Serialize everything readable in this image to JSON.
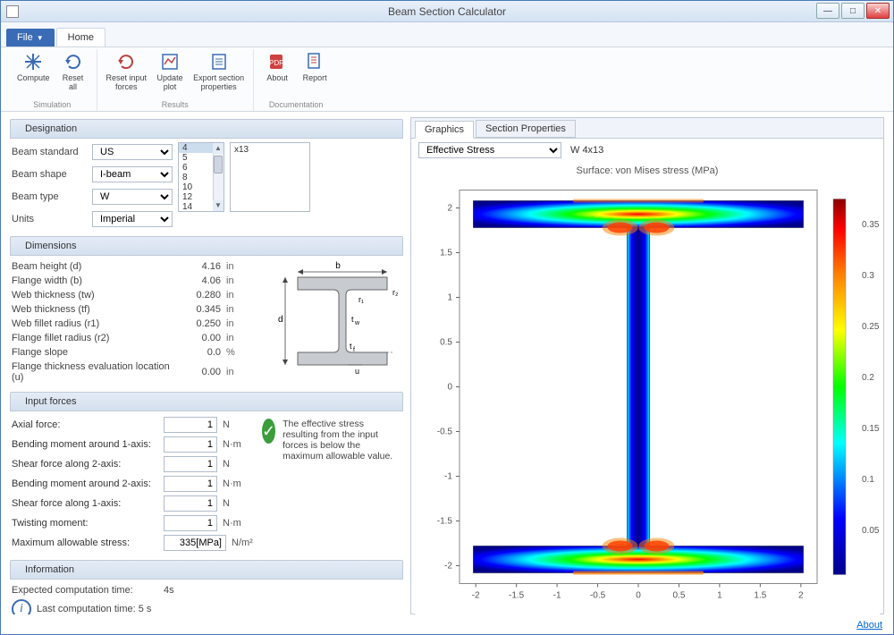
{
  "window": {
    "title": "Beam Section Calculator"
  },
  "menubar": {
    "file": "File",
    "home": "Home"
  },
  "ribbon": {
    "groups": [
      {
        "label": "Simulation",
        "items": [
          {
            "name": "compute-button",
            "label": "Compute",
            "icon": "compute"
          },
          {
            "name": "reset-all-button",
            "label": "Reset\nall",
            "icon": "reset"
          }
        ]
      },
      {
        "label": "Results",
        "items": [
          {
            "name": "reset-forces-button",
            "label": "Reset input\nforces",
            "icon": "reset-forces"
          },
          {
            "name": "update-plot-button",
            "label": "Update\nplot",
            "icon": "update-plot"
          },
          {
            "name": "export-props-button",
            "label": "Export section\nproperties",
            "icon": "export"
          }
        ]
      },
      {
        "label": "Documentation",
        "items": [
          {
            "name": "about-button",
            "label": "About",
            "icon": "about"
          },
          {
            "name": "report-button",
            "label": "Report",
            "icon": "report"
          }
        ]
      }
    ]
  },
  "designation": {
    "header": "Designation",
    "rows": [
      {
        "label": "Beam standard",
        "value": "US"
      },
      {
        "label": "Beam shape",
        "value": "I-beam"
      },
      {
        "label": "Beam type",
        "value": "W"
      },
      {
        "label": "Units",
        "value": "Imperial"
      }
    ],
    "sizes": [
      "4",
      "5",
      "6",
      "8",
      "10",
      "12",
      "14"
    ],
    "size_selected": "4",
    "info": "x13"
  },
  "dimensions": {
    "header": "Dimensions",
    "rows": [
      {
        "label": "Beam height (d)",
        "value": "4.16",
        "unit": "in"
      },
      {
        "label": "Flange width (b)",
        "value": "4.06",
        "unit": "in"
      },
      {
        "label": "Web thickness (tw)",
        "value": "0.280",
        "unit": "in"
      },
      {
        "label": "Web thickness (tf)",
        "value": "0.345",
        "unit": "in"
      },
      {
        "label": "Web fillet radius (r1)",
        "value": "0.250",
        "unit": "in"
      },
      {
        "label": "Flange fillet radius (r2)",
        "value": "0.00",
        "unit": "in"
      },
      {
        "label": "Flange slope",
        "value": "0.0",
        "unit": "%"
      },
      {
        "label": "Flange thickness evaluation location (u)",
        "value": "0.00",
        "unit": "in"
      }
    ]
  },
  "forces": {
    "header": "Input forces",
    "rows": [
      {
        "label": "Axial force:",
        "value": "1",
        "unit": "N"
      },
      {
        "label": "Bending moment around 1-axis:",
        "value": "1",
        "unit": "N·m"
      },
      {
        "label": "Shear force along 2-axis:",
        "value": "1",
        "unit": "N"
      },
      {
        "label": "Bending moment around 2-axis:",
        "value": "1",
        "unit": "N·m"
      },
      {
        "label": "Shear force along 1-axis:",
        "value": "1",
        "unit": "N"
      },
      {
        "label": "Twisting moment:",
        "value": "1",
        "unit": "N·m"
      },
      {
        "label": "Maximum allowable stress:",
        "value": "335[MPa]",
        "unit": "N/m²"
      }
    ],
    "status_text": "The effective stress resulting from the input forces is below the maximum allowable value."
  },
  "information": {
    "header": "Information",
    "expected_label": "Expected computation time:",
    "expected_value": "4s",
    "last": "Last computation time: 5 s"
  },
  "graphics": {
    "tabs": [
      "Graphics",
      "Section Properties"
    ],
    "dropdown": "Effective Stress",
    "label": "W 4x13",
    "title": "Surface: von Mises stress (MPa)",
    "xticks": [
      "-2",
      "-1.5",
      "-1",
      "-0.5",
      "0",
      "0.5",
      "1",
      "1.5",
      "2"
    ],
    "yticks": [
      "-2",
      "-1.5",
      "-1",
      "-0.5",
      "0",
      "0.5",
      "1",
      "1.5",
      "2"
    ],
    "colorbar_ticks": [
      "0.35",
      "0.3",
      "0.25",
      "0.2",
      "0.15",
      "0.1",
      "0.05"
    ],
    "colors": {
      "darkblue": "#00008b",
      "blue": "#0000ff",
      "cyan": "#00ffff",
      "green": "#00ff00",
      "yellow": "#ffff00",
      "orange": "#ff8000",
      "red": "#ff0000",
      "darkred": "#8b0000"
    }
  },
  "footer": {
    "about": "About"
  }
}
